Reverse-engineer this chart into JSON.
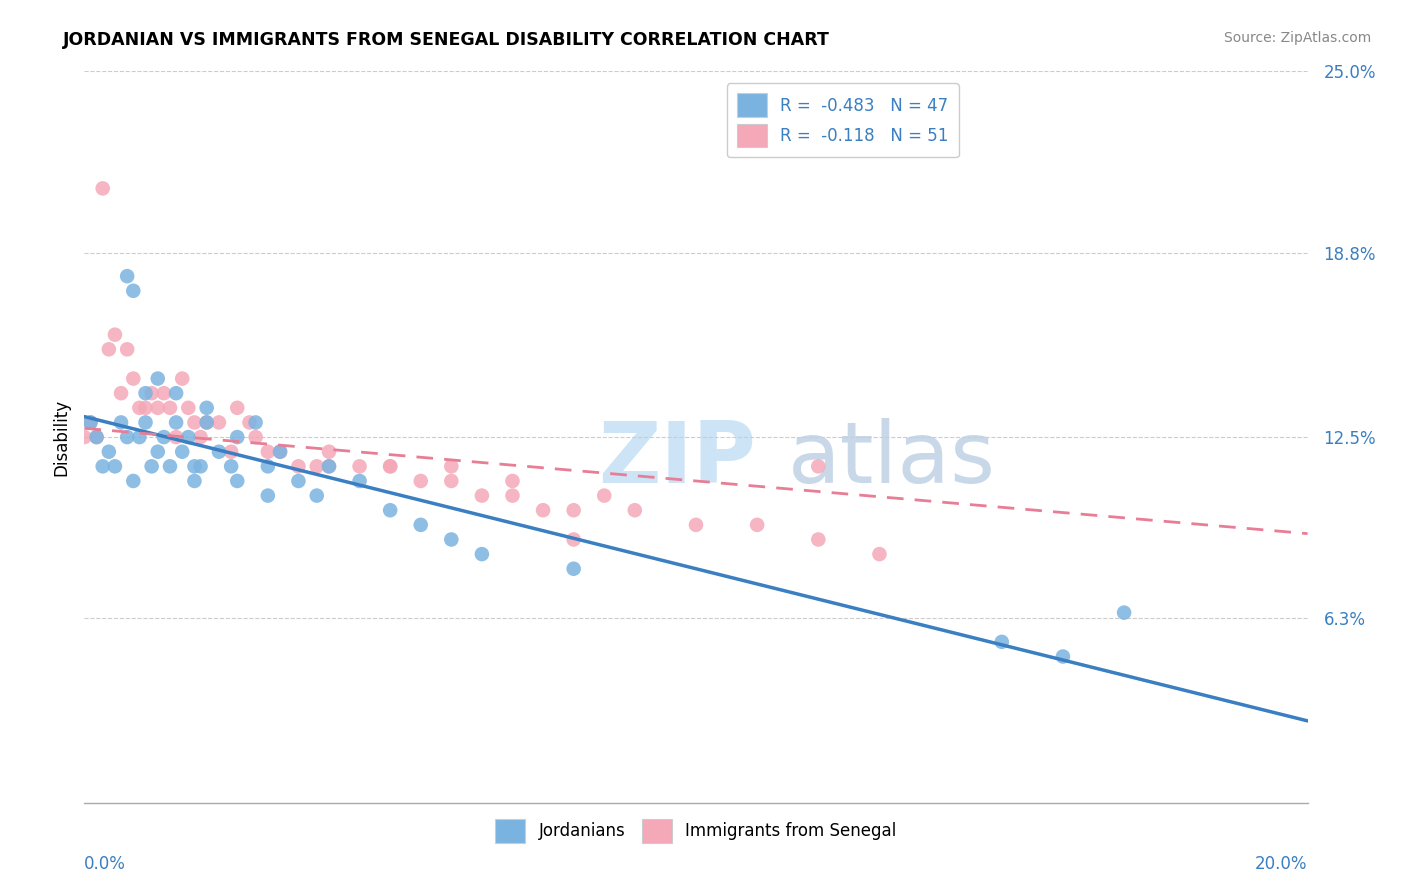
{
  "title": "JORDANIAN VS IMMIGRANTS FROM SENEGAL DISABILITY CORRELATION CHART",
  "source": "Source: ZipAtlas.com",
  "ylabel": "Disability",
  "xmin": 0.0,
  "xmax": 0.2,
  "ymin": 0.0,
  "ymax": 0.25,
  "yticks": [
    0.063,
    0.125,
    0.188,
    0.25
  ],
  "ytick_labels": [
    "6.3%",
    "12.5%",
    "18.8%",
    "25.0%"
  ],
  "legend_r1": "R =  -0.483   N = 47",
  "legend_r2": "R =  -0.118   N = 51",
  "jordanian_color": "#7ab3e0",
  "senegal_color": "#f4a8b8",
  "trend_jordanian_color": "#3a7fc1",
  "trend_senegal_color": "#e87d96",
  "jordanian_scatter_x": [
    0.001,
    0.002,
    0.003,
    0.004,
    0.005,
    0.006,
    0.007,
    0.008,
    0.009,
    0.01,
    0.011,
    0.012,
    0.013,
    0.014,
    0.015,
    0.016,
    0.017,
    0.018,
    0.019,
    0.02,
    0.022,
    0.024,
    0.025,
    0.028,
    0.03,
    0.032,
    0.035,
    0.038,
    0.04,
    0.045,
    0.05,
    0.055,
    0.06,
    0.065,
    0.007,
    0.008,
    0.01,
    0.012,
    0.015,
    0.018,
    0.02,
    0.025,
    0.03,
    0.15,
    0.16,
    0.17,
    0.08
  ],
  "jordanian_scatter_y": [
    0.13,
    0.125,
    0.115,
    0.12,
    0.115,
    0.13,
    0.125,
    0.11,
    0.125,
    0.13,
    0.115,
    0.12,
    0.125,
    0.115,
    0.13,
    0.12,
    0.125,
    0.11,
    0.115,
    0.135,
    0.12,
    0.115,
    0.125,
    0.13,
    0.115,
    0.12,
    0.11,
    0.105,
    0.115,
    0.11,
    0.1,
    0.095,
    0.09,
    0.085,
    0.18,
    0.175,
    0.14,
    0.145,
    0.14,
    0.115,
    0.13,
    0.11,
    0.105,
    0.055,
    0.05,
    0.065,
    0.08
  ],
  "senegal_scatter_x": [
    0.0,
    0.001,
    0.002,
    0.003,
    0.004,
    0.005,
    0.006,
    0.007,
    0.008,
    0.009,
    0.01,
    0.011,
    0.012,
    0.013,
    0.014,
    0.015,
    0.016,
    0.017,
    0.018,
    0.019,
    0.02,
    0.022,
    0.024,
    0.025,
    0.027,
    0.028,
    0.03,
    0.032,
    0.035,
    0.038,
    0.04,
    0.045,
    0.05,
    0.055,
    0.06,
    0.065,
    0.07,
    0.075,
    0.08,
    0.085,
    0.09,
    0.1,
    0.11,
    0.12,
    0.13,
    0.04,
    0.05,
    0.06,
    0.07,
    0.08,
    0.12
  ],
  "senegal_scatter_y": [
    0.125,
    0.13,
    0.125,
    0.21,
    0.155,
    0.16,
    0.14,
    0.155,
    0.145,
    0.135,
    0.135,
    0.14,
    0.135,
    0.14,
    0.135,
    0.125,
    0.145,
    0.135,
    0.13,
    0.125,
    0.13,
    0.13,
    0.12,
    0.135,
    0.13,
    0.125,
    0.12,
    0.12,
    0.115,
    0.115,
    0.115,
    0.115,
    0.115,
    0.11,
    0.11,
    0.105,
    0.105,
    0.1,
    0.1,
    0.105,
    0.1,
    0.095,
    0.095,
    0.09,
    0.085,
    0.12,
    0.115,
    0.115,
    0.11,
    0.09,
    0.115
  ],
  "trend_j_x0": 0.0,
  "trend_j_y0": 0.132,
  "trend_j_x1": 0.2,
  "trend_j_y1": 0.028,
  "trend_s_x0": 0.0,
  "trend_s_y0": 0.128,
  "trend_s_x1": 0.2,
  "trend_s_y1": 0.092
}
